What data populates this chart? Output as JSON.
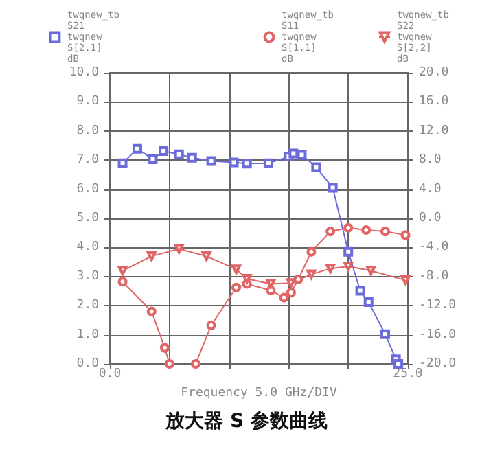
{
  "chart_data": {
    "type": "line",
    "title": "放大器 S 参数曲线",
    "xlabel": "Frequency 5.0 GHz/DIV",
    "xlim": [
      0,
      25
    ],
    "xticks": [
      {
        "value": 0,
        "label": "0.0"
      },
      {
        "value": 5,
        "label": null
      },
      {
        "value": 10,
        "label": null
      },
      {
        "value": 15,
        "label": null
      },
      {
        "value": 20,
        "label": null
      },
      {
        "value": 25,
        "label": "25.0"
      }
    ],
    "ylim": [
      0,
      10
    ],
    "yticks": [
      {
        "value": 0,
        "label": "0.0"
      },
      {
        "value": 1,
        "label": "1.0"
      },
      {
        "value": 2,
        "label": "2.0"
      },
      {
        "value": 3,
        "label": "3.0"
      },
      {
        "value": 4,
        "label": "4.0"
      },
      {
        "value": 5,
        "label": "5.0"
      },
      {
        "value": 6,
        "label": "6.0"
      },
      {
        "value": 7,
        "label": "7.0"
      },
      {
        "value": 8,
        "label": "8.0"
      },
      {
        "value": 9,
        "label": "9.0"
      },
      {
        "value": 10,
        "label": "10.0"
      }
    ],
    "y2lim": [
      -20,
      20
    ],
    "y2ticks": [
      {
        "value": -20,
        "label": "-20.0"
      },
      {
        "value": -16,
        "label": "-16.0"
      },
      {
        "value": -12,
        "label": "-12.0"
      },
      {
        "value": -8,
        "label": "-8.0"
      },
      {
        "value": -4,
        "label": "-4.0"
      },
      {
        "value": 0,
        "label": "0.0"
      },
      {
        "value": 4,
        "label": "4.0"
      },
      {
        "value": 8,
        "label": "8.0"
      },
      {
        "value": 12,
        "label": "12.0"
      },
      {
        "value": 16,
        "label": "16.0"
      },
      {
        "value": 20,
        "label": "20.0"
      }
    ],
    "grid": true,
    "legend": "top",
    "series": [
      {
        "name": "twqnew_tb\nS21\ntwqnew\nS[2,1]\ndB",
        "color": "#6b6bdc",
        "marker": "square",
        "x": [
          1.07,
          2.3,
          3.6,
          4.5,
          5.8,
          6.9,
          8.5,
          10.4,
          11.5,
          13.3,
          15.0,
          15.4,
          16.1,
          17.3,
          18.7,
          20.0,
          21.0,
          21.7,
          23.1,
          24.0,
          24.2
        ],
        "values": [
          6.89,
          7.39,
          7.03,
          7.31,
          7.2,
          7.08,
          6.97,
          6.92,
          6.88,
          6.89,
          7.12,
          7.23,
          7.18,
          6.76,
          6.05,
          3.85,
          2.51,
          2.12,
          1.02,
          0.16,
          0
        ]
      },
      {
        "name": "twqnew_tb\nS11\ntwqnew\nS[1,1]\ndB",
        "color": "#e06666",
        "marker": "circle",
        "axis": "y2",
        "x": [
          1.07,
          3.5,
          4.6,
          5.0,
          6.1,
          7.2,
          8.5,
          10.6,
          11.5,
          13.5,
          14.6,
          15.2,
          15.8,
          16.9,
          18.5,
          20.0,
          21.5,
          23.1,
          24.8
        ],
        "values": [
          -8.7,
          -12.8,
          -17.8,
          -20,
          null,
          -20,
          -14.7,
          -9.5,
          -9.0,
          -9.9,
          -10.9,
          -10.2,
          -8.4,
          -4.6,
          -1.8,
          -1.3,
          -1.6,
          -1.8,
          -2.3
        ]
      },
      {
        "name": "twqnew_tb\nS22\ntwqnew\nS[2,2]\ndB",
        "color": "#e06666",
        "marker": "triangle",
        "axis": "y2",
        "x": [
          1.07,
          3.5,
          5.8,
          8.1,
          10.6,
          11.5,
          13.5,
          15.2,
          16.9,
          18.5,
          20.0,
          21.9,
          24.8
        ],
        "values": [
          -7.2,
          -5.2,
          -4.2,
          -5.2,
          -7.0,
          -8.3,
          -9.0,
          -8.9,
          -7.7,
          -6.9,
          -6.6,
          -7.2,
          -8.5
        ]
      }
    ]
  }
}
